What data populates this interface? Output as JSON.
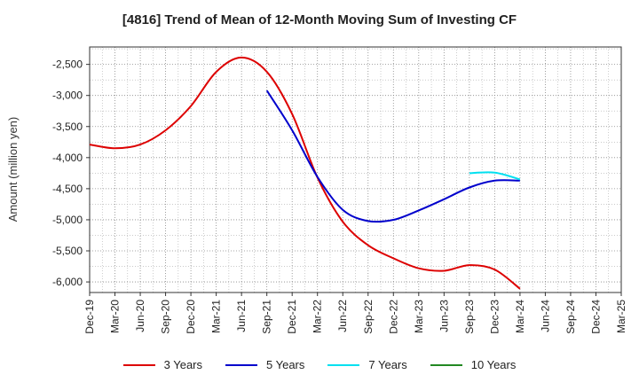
{
  "chart_data": {
    "type": "line",
    "title": "[4816]  Trend of Mean of 12-Month Moving Sum of Investing CF",
    "xlabel": "",
    "ylabel": "Amount (million yen)",
    "ylim": [
      -6170,
      -2220
    ],
    "yticks": [
      -2500,
      -3000,
      -3500,
      -4000,
      -4500,
      -5000,
      -5500,
      -6000
    ],
    "ytick_labels": [
      "-2,500",
      "-3,000",
      "-3,500",
      "-4,000",
      "-4,500",
      "-5,000",
      "-5,500",
      "-6,000"
    ],
    "categories": [
      "Dec-19",
      "Mar-20",
      "Jun-20",
      "Sep-20",
      "Dec-20",
      "Mar-21",
      "Jun-21",
      "Sep-21",
      "Dec-21",
      "Mar-22",
      "Jun-22",
      "Sep-22",
      "Dec-22",
      "Mar-23",
      "Jun-23",
      "Sep-23",
      "Dec-23",
      "Mar-24",
      "Jun-24",
      "Sep-24",
      "Dec-24",
      "Mar-25"
    ],
    "grid": true,
    "legend_position": "bottom",
    "series": [
      {
        "name": "3 Years",
        "color": "#dd0000",
        "values": [
          -3790,
          -3850,
          -3790,
          -3560,
          -3170,
          -2620,
          -2390,
          -2620,
          -3300,
          -4320,
          -5030,
          -5410,
          -5620,
          -5780,
          -5820,
          -5730,
          -5800,
          -6110,
          null,
          null,
          null,
          null
        ]
      },
      {
        "name": "5 Years",
        "color": "#0000cc",
        "values": [
          null,
          null,
          null,
          null,
          null,
          null,
          null,
          -2920,
          -3560,
          -4310,
          -4840,
          -5020,
          -5000,
          -4850,
          -4670,
          -4480,
          -4370,
          -4370,
          null,
          null,
          null,
          null
        ]
      },
      {
        "name": "7 Years",
        "color": "#00e0f0",
        "values": [
          null,
          null,
          null,
          null,
          null,
          null,
          null,
          null,
          null,
          null,
          null,
          null,
          null,
          null,
          null,
          -4250,
          -4240,
          -4350,
          null,
          null,
          null,
          null
        ]
      },
      {
        "name": "10 Years",
        "color": "#228822",
        "values": [
          null,
          null,
          null,
          null,
          null,
          null,
          null,
          null,
          null,
          null,
          null,
          null,
          null,
          null,
          null,
          null,
          null,
          null,
          null,
          null,
          null,
          null
        ]
      }
    ]
  }
}
